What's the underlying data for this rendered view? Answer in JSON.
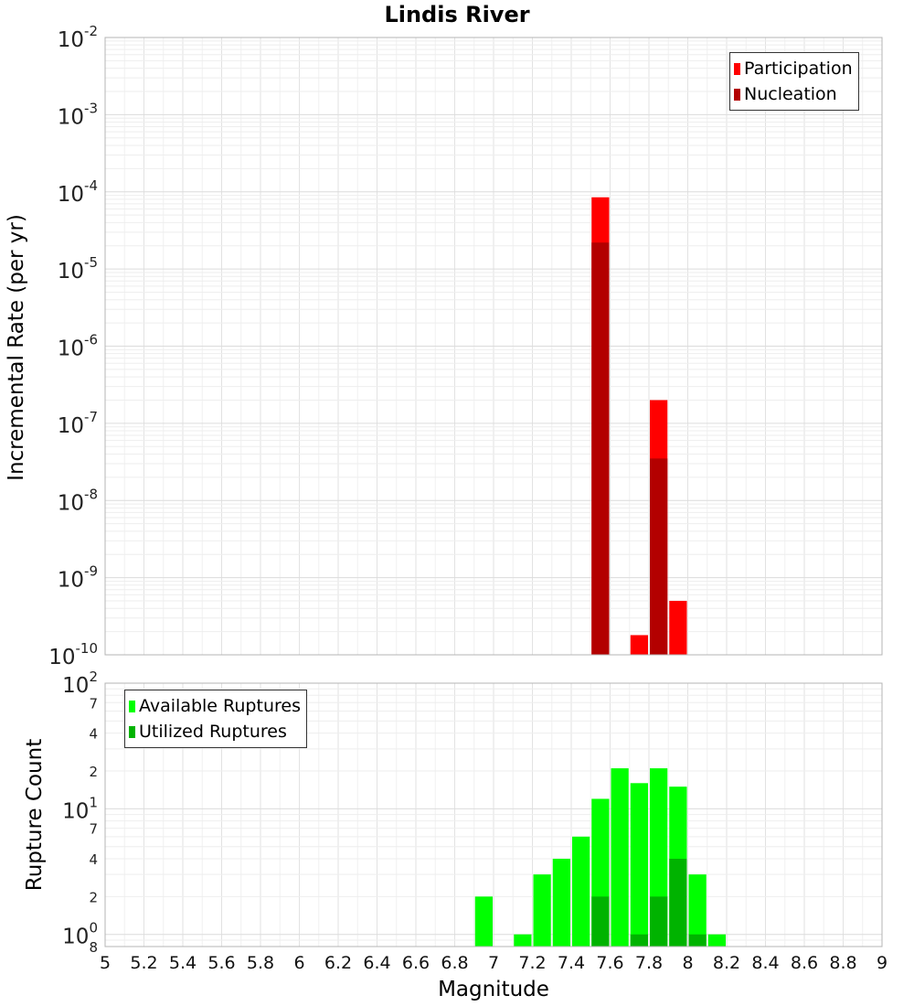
{
  "chart_data": [
    {
      "type": "bar",
      "title": "Lindis River",
      "ylabel": "Incremental Rate (per yr)",
      "xlabel": "",
      "y_scale": "log",
      "ylim": [
        1e-10,
        0.01
      ],
      "xlim": [
        5,
        9
      ],
      "bin_width": 0.1,
      "grid": true,
      "legend_position": "top-right",
      "y_tick_labels": [
        {
          "value": 0.01,
          "base": "10",
          "exp": "-2"
        },
        {
          "value": 0.001,
          "base": "10",
          "exp": "-3"
        },
        {
          "value": 0.0001,
          "base": "10",
          "exp": "-4"
        },
        {
          "value": 1e-05,
          "base": "10",
          "exp": "-5"
        },
        {
          "value": 1e-06,
          "base": "10",
          "exp": "-6"
        },
        {
          "value": 1e-07,
          "base": "10",
          "exp": "-7"
        },
        {
          "value": 1e-08,
          "base": "10",
          "exp": "-8"
        },
        {
          "value": 1e-09,
          "base": "10",
          "exp": "-9"
        },
        {
          "value": 1e-10,
          "base": "10",
          "exp": "-10"
        }
      ],
      "series": [
        {
          "name": "Participation",
          "color": "#ff0000",
          "points": [
            {
              "x": 7.55,
              "y": 8.5e-05
            },
            {
              "x": 7.75,
              "y": 1.8e-10
            },
            {
              "x": 7.85,
              "y": 2e-07
            },
            {
              "x": 7.95,
              "y": 5e-10
            }
          ]
        },
        {
          "name": "Nucleation",
          "color": "#b30000",
          "points": [
            {
              "x": 7.55,
              "y": 2.2e-05
            },
            {
              "x": 7.85,
              "y": 3.5e-08
            }
          ]
        }
      ]
    },
    {
      "type": "bar",
      "title": "",
      "ylabel": "Rupture Count",
      "xlabel": "Magnitude",
      "y_scale": "log",
      "ylim": [
        0.8,
        100
      ],
      "xlim": [
        5,
        9
      ],
      "bin_width": 0.1,
      "grid": true,
      "legend_position": "top-left",
      "x_ticks": [
        "5",
        "5.2",
        "5.4",
        "5.6",
        "5.8",
        "6",
        "6.2",
        "6.4",
        "6.6",
        "6.8",
        "7",
        "7.2",
        "7.4",
        "7.6",
        "7.8",
        "8",
        "8.2",
        "8.4",
        "8.6",
        "8.8",
        "9"
      ],
      "y_tick_labels": [
        {
          "value": 100,
          "base": "10",
          "exp": "2"
        },
        {
          "value": 70,
          "base": "",
          "exp": "7"
        },
        {
          "value": 40,
          "base": "",
          "exp": "4"
        },
        {
          "value": 20,
          "base": "",
          "exp": "2"
        },
        {
          "value": 10,
          "base": "10",
          "exp": "1"
        },
        {
          "value": 7,
          "base": "",
          "exp": "7"
        },
        {
          "value": 4,
          "base": "",
          "exp": "4"
        },
        {
          "value": 2,
          "base": "",
          "exp": "2"
        },
        {
          "value": 1,
          "base": "10",
          "exp": "0"
        },
        {
          "value": 0.8,
          "base": "",
          "exp": "8"
        }
      ],
      "series": [
        {
          "name": "Available Ruptures",
          "color": "#00ff00",
          "points": [
            {
              "x": 6.95,
              "y": 2
            },
            {
              "x": 7.15,
              "y": 1
            },
            {
              "x": 7.25,
              "y": 3
            },
            {
              "x": 7.35,
              "y": 4
            },
            {
              "x": 7.45,
              "y": 6
            },
            {
              "x": 7.55,
              "y": 12
            },
            {
              "x": 7.65,
              "y": 21
            },
            {
              "x": 7.75,
              "y": 16
            },
            {
              "x": 7.85,
              "y": 21
            },
            {
              "x": 7.95,
              "y": 15
            },
            {
              "x": 8.05,
              "y": 3
            },
            {
              "x": 8.15,
              "y": 1
            }
          ]
        },
        {
          "name": "Utilized Ruptures",
          "color": "#00b300",
          "points": [
            {
              "x": 7.55,
              "y": 2
            },
            {
              "x": 7.75,
              "y": 1
            },
            {
              "x": 7.85,
              "y": 2
            },
            {
              "x": 7.95,
              "y": 4
            },
            {
              "x": 8.05,
              "y": 1
            }
          ]
        }
      ]
    }
  ]
}
